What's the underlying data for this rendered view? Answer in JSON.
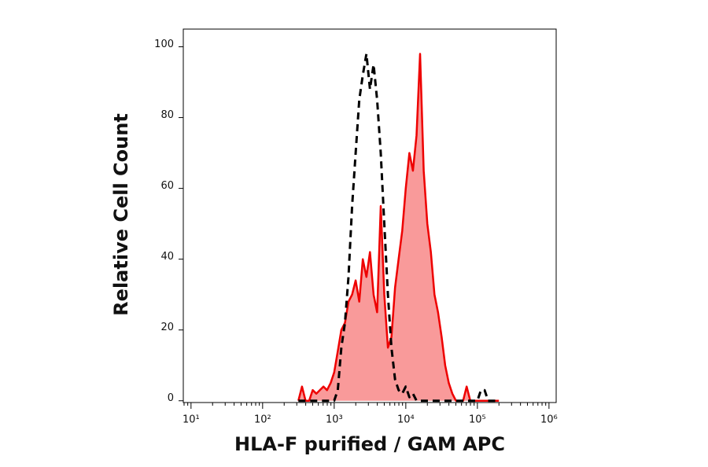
{
  "chart_data": {
    "type": "line",
    "xlabel": "HLA-F purified / GAM APC",
    "ylabel": "Relative Cell Count",
    "log_x": true,
    "xlim": [
      7.8,
      1260000
    ],
    "xticks": [
      {
        "value": 10,
        "label": "10¹"
      },
      {
        "value": 100,
        "label": "10²"
      },
      {
        "value": 1000,
        "label": "10³"
      },
      {
        "value": 10000,
        "label": "10⁴"
      },
      {
        "value": 100000,
        "label": "10⁵"
      },
      {
        "value": 1000000,
        "label": "10⁶"
      }
    ],
    "ylim": [
      -0.5,
      105
    ],
    "yticks": [
      0,
      20,
      40,
      60,
      80,
      100
    ],
    "x": [
      316,
      355,
      398,
      447,
      501,
      562,
      631,
      708,
      794,
      891,
      1000,
      1122,
      1259,
      1413,
      1585,
      1778,
      1995,
      2239,
      2512,
      2818,
      3162,
      3548,
      3981,
      4467,
      5012,
      5623,
      6310,
      7079,
      7943,
      8913,
      10000,
      11220,
      12589,
      14125,
      15849,
      17783,
      19953,
      22387,
      25119,
      28184,
      31623,
      35481,
      39811,
      44668,
      50119,
      56234,
      63096,
      70795,
      79433,
      89125,
      100000,
      112202,
      125893,
      141254,
      158489,
      177828,
      199526
    ],
    "series": [
      {
        "color": "#ee0000",
        "fill": "#f99a9a",
        "style": "solid",
        "values": [
          0,
          4,
          0,
          0,
          3,
          2,
          3,
          4,
          3,
          5,
          8,
          14,
          20,
          22,
          28,
          30,
          34,
          28,
          40,
          35,
          42,
          30,
          25,
          55,
          30,
          15,
          18,
          32,
          40,
          48,
          60,
          70,
          65,
          75,
          98,
          65,
          50,
          42,
          30,
          25,
          18,
          10,
          5,
          2,
          0,
          0,
          0,
          4,
          0,
          0,
          0,
          0,
          0,
          0,
          0,
          0,
          0
        ]
      },
      {
        "color": "#000000",
        "fill": null,
        "style": "dashed",
        "values": [
          0,
          0,
          0,
          0,
          0,
          0,
          0,
          0,
          0,
          0,
          0,
          3,
          15,
          22,
          35,
          55,
          70,
          85,
          92,
          98,
          88,
          95,
          85,
          70,
          50,
          30,
          15,
          6,
          3,
          2,
          4,
          1,
          2,
          0,
          0,
          0,
          0,
          0,
          0,
          0,
          0,
          0,
          0,
          0,
          0,
          0,
          0,
          0,
          0,
          0,
          0,
          3,
          3,
          0,
          0,
          0,
          0
        ]
      }
    ]
  }
}
